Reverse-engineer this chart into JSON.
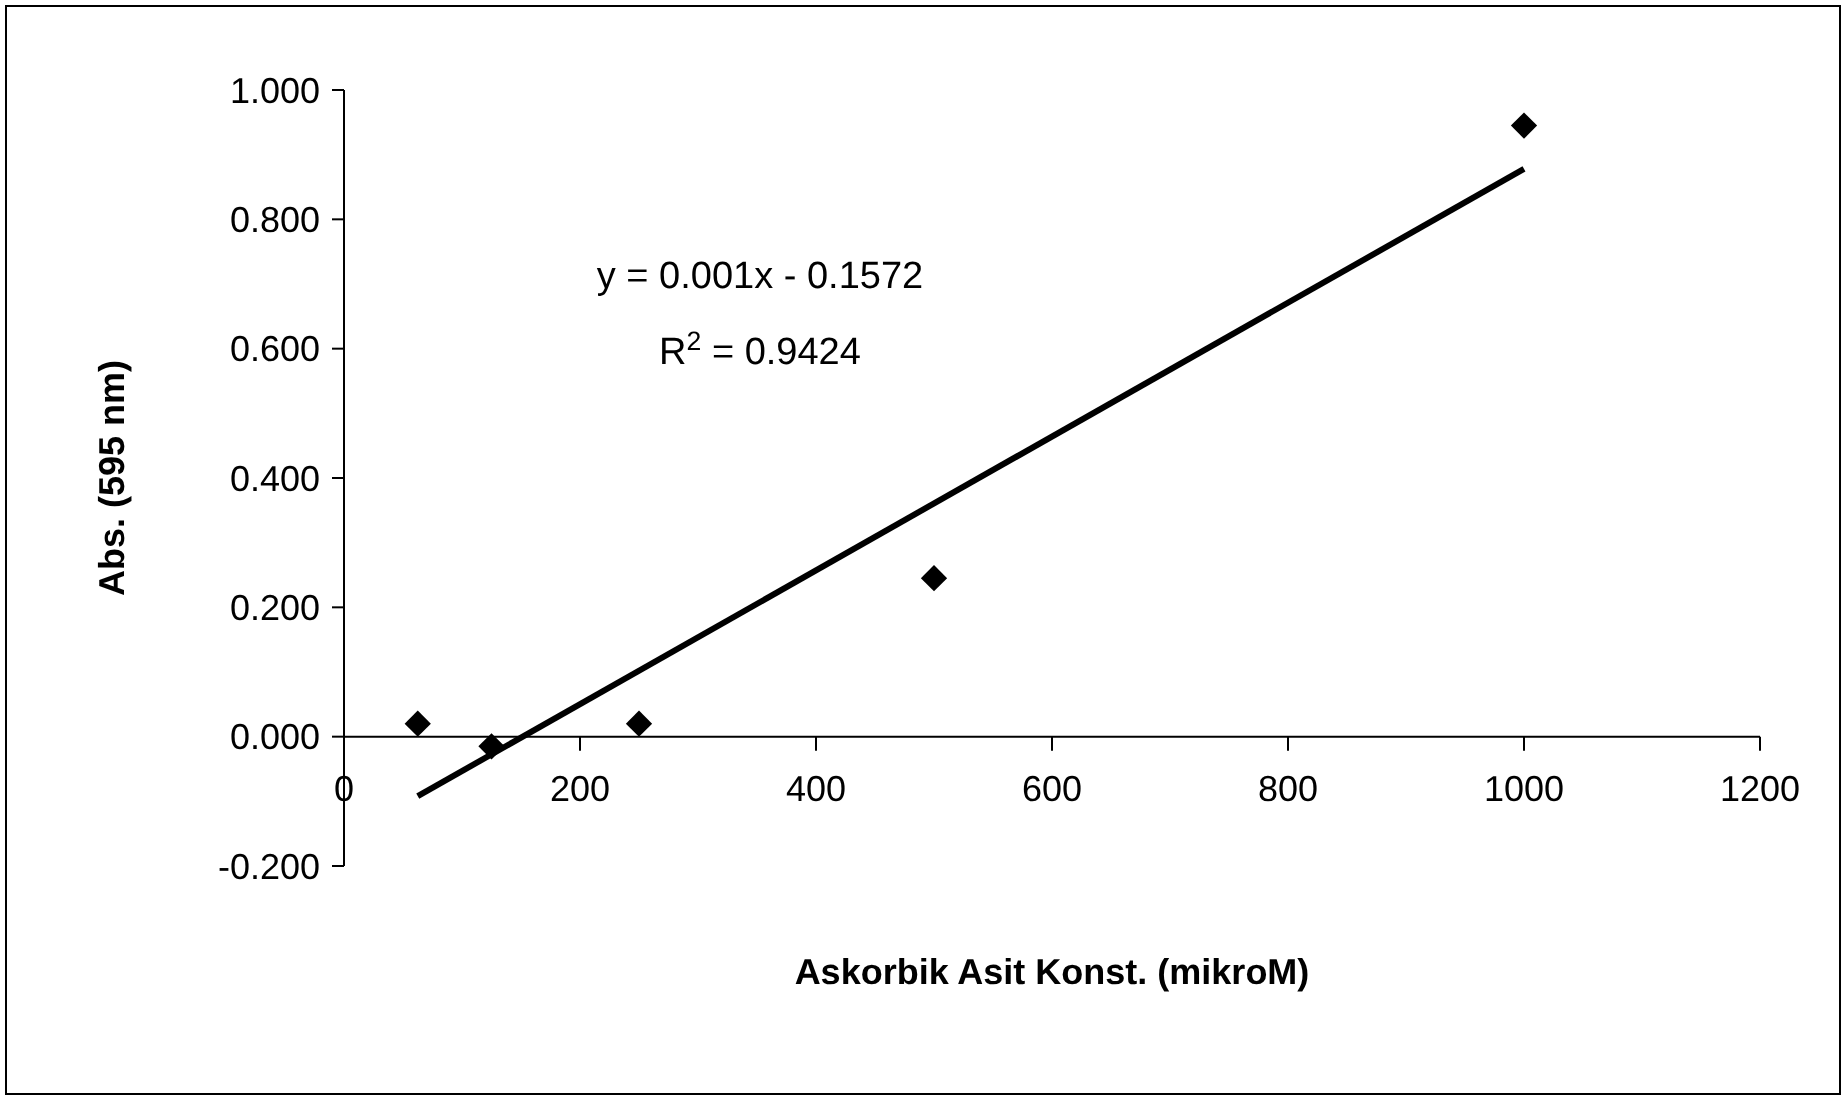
{
  "chart_data": {
    "type": "scatter",
    "xlabel": "Askorbik Asit Konst. (mikroM)",
    "ylabel": "Abs. (595 nm)",
    "annotations": [
      "y = 0.001x - 0.1572",
      "R$^{2}$ = 0.9424"
    ],
    "xlim": [
      0,
      1200
    ],
    "xticks": [
      0,
      200,
      400,
      600,
      800,
      1000,
      1200
    ],
    "ylim": [
      -0.2,
      1.0
    ],
    "yticks": [
      {
        "value": -0.2,
        "label": "-0.200"
      },
      {
        "value": 0,
        "label": "0.000"
      },
      {
        "value": 0.2,
        "label": "0.200"
      },
      {
        "value": 0.4,
        "label": "0.400"
      },
      {
        "value": 0.6,
        "label": "0.600"
      },
      {
        "value": 0.8,
        "label": "0.800"
      },
      {
        "value": 1.0,
        "label": "1.000"
      }
    ],
    "series": [
      {
        "marker": "diamond",
        "color": "#000000",
        "x": [
          62.5,
          125,
          250,
          500,
          1000
        ],
        "values": [
          0.02,
          -0.015,
          0.02,
          0.245,
          0.945
        ]
      },
      {
        "type": "line",
        "color": "#000000",
        "x": [
          62.5,
          1000
        ],
        "values": [
          -0.092,
          0.878
        ]
      }
    ]
  }
}
